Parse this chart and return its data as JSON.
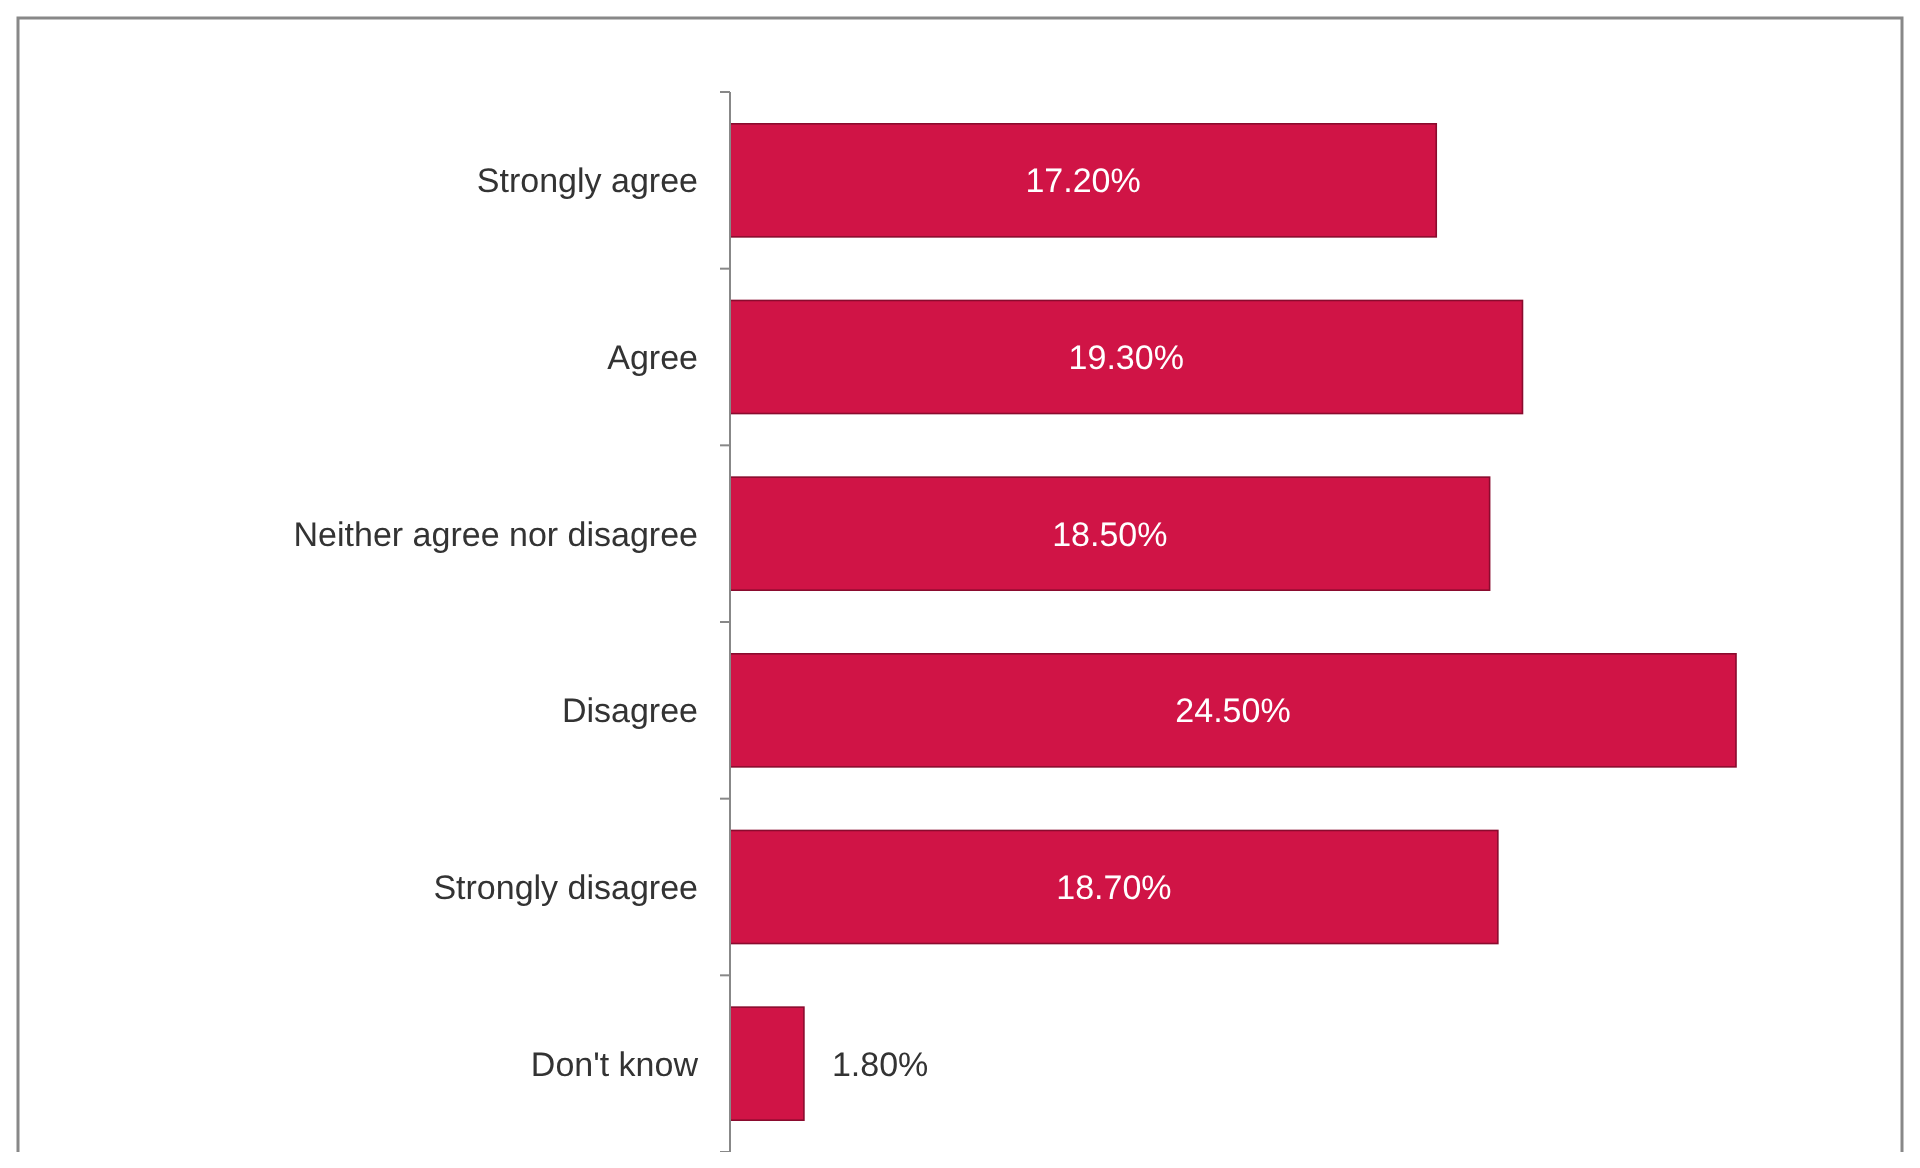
{
  "chart_data": {
    "type": "bar",
    "orientation": "horizontal",
    "categories": [
      "Strongly agree",
      "Agree",
      "Neither agree nor disagree",
      "Disagree",
      "Strongly disagree",
      "Don't know"
    ],
    "values": [
      17.2,
      19.3,
      18.5,
      24.5,
      18.7,
      1.8
    ],
    "value_labels": [
      "17.20%",
      "19.30%",
      "18.50%",
      "24.50%",
      "18.70%",
      "1.80%"
    ],
    "color": "#d01446"
  }
}
